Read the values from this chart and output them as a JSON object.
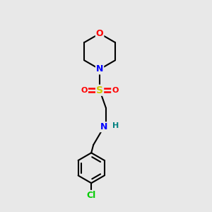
{
  "background_color": "#e8e8e8",
  "bond_color": "#000000",
  "atom_colors": {
    "O": "#ff0000",
    "N": "#0000ff",
    "S": "#cccc00",
    "Cl": "#00cc00",
    "C": "#000000",
    "H": "#008080"
  },
  "figsize": [
    3.0,
    3.0
  ],
  "dpi": 100,
  "lw": 1.5
}
